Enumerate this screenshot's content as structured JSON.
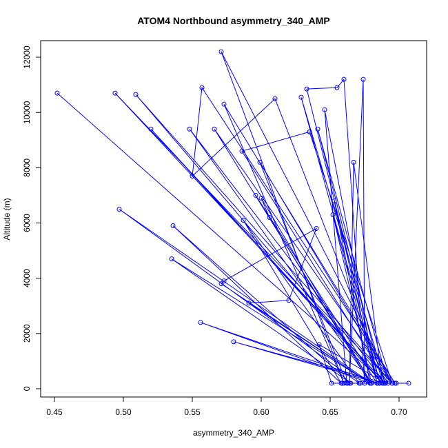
{
  "chart_data": {
    "type": "line",
    "title": "ATOM4 Northbound asymmetry_340_AMP",
    "xlabel": "asymmetry_340_AMP",
    "ylabel": "Altitude (m)",
    "xlim": [
      0.44,
      0.72
    ],
    "ylim": [
      -300,
      12600
    ],
    "x_ticks": [
      0.45,
      0.5,
      0.55,
      0.6,
      0.65,
      0.7
    ],
    "x_tick_labels": [
      "0.45",
      "0.50",
      "0.55",
      "0.60",
      "0.65",
      "0.70"
    ],
    "y_ticks": [
      0,
      2000,
      4000,
      6000,
      8000,
      10000,
      12000
    ],
    "y_tick_labels": [
      "0",
      "2000",
      "4000",
      "6000",
      "8000",
      "10000",
      "12000"
    ],
    "grid": false,
    "legend": "none",
    "series": [
      {
        "color": "#0000ff",
        "marker": "open-circle",
        "x": [
          0.452,
          0.69,
          0.494,
          0.695,
          0.509,
          0.688,
          0.52,
          0.69,
          0.548,
          0.68,
          0.566,
          0.695,
          0.571,
          0.66,
          0.573,
          0.697,
          0.557,
          0.55,
          0.61,
          0.69,
          0.629,
          0.686,
          0.633,
          0.655,
          0.66,
          0.675,
          0.674,
          0.664,
          0.667,
          0.688,
          0.641,
          0.692,
          0.586,
          0.635,
          0.695,
          0.599,
          0.662,
          0.646,
          0.684,
          0.596,
          0.68,
          0.6,
          0.606,
          0.679,
          0.653,
          0.684,
          0.652,
          0.68,
          0.497,
          0.671,
          0.587,
          0.658,
          0.536,
          0.665,
          0.535,
          0.679,
          0.571,
          0.573,
          0.64,
          0.62,
          0.591,
          0.679,
          0.556,
          0.685,
          0.58,
          0.69,
          0.642,
          0.651,
          0.707,
          0.659,
          0.679,
          0.663,
          0.675,
          0.672,
          0.689,
          0.698
        ]
      }
    ]
  }
}
